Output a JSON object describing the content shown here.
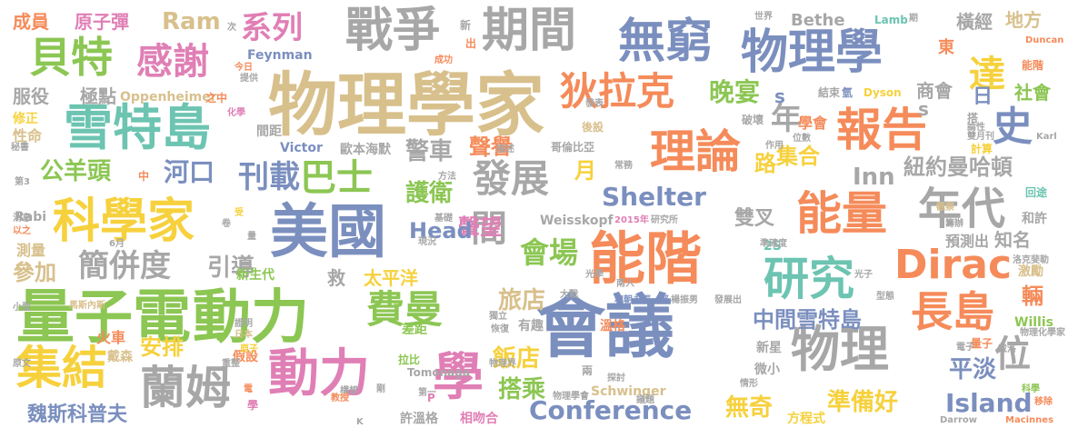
{
  "palette": {
    "blue": "#7b8fbf",
    "green": "#8cc653",
    "orange": "#f58b5a",
    "pink": "#e07fb5",
    "tan": "#d8c08c",
    "gray": "#a7a7a7",
    "yellow": "#f6d13d",
    "teal": "#6cc4b1"
  },
  "words": [
    {
      "text": "會議",
      "color": "blue"
    },
    {
      "text": "物理學家",
      "color": "tan"
    },
    {
      "text": "量子電",
      "color": "green"
    },
    {
      "text": "動力",
      "color": "green"
    },
    {
      "text": "美國",
      "color": "blue"
    },
    {
      "text": "能階",
      "color": "orange"
    },
    {
      "text": "雪特島",
      "color": "teal"
    },
    {
      "text": "戰爭",
      "color": "gray"
    },
    {
      "text": "期間",
      "color": "gray"
    },
    {
      "text": "無窮",
      "color": "blue"
    },
    {
      "text": "物理學",
      "color": "blue"
    },
    {
      "text": "理論",
      "color": "orange"
    },
    {
      "text": "報告",
      "color": "orange"
    },
    {
      "text": "能量",
      "color": "orange"
    },
    {
      "text": "年代",
      "color": "gray"
    },
    {
      "text": "科學家",
      "color": "yellow"
    },
    {
      "text": "物理",
      "color": "gray"
    },
    {
      "text": "動力",
      "color": "pink"
    },
    {
      "text": "學",
      "color": "pink"
    },
    {
      "text": "集結",
      "color": "yellow"
    },
    {
      "text": "蘭姆",
      "color": "gray"
    },
    {
      "text": "研究",
      "color": "teal"
    },
    {
      "text": "長島",
      "color": "orange"
    },
    {
      "text": "Dirac",
      "color": "orange"
    },
    {
      "text": "發展",
      "color": "gray"
    },
    {
      "text": "費曼",
      "color": "green"
    },
    {
      "text": "狄拉克",
      "color": "orange"
    },
    {
      "text": "貝特",
      "color": "green"
    },
    {
      "text": "感謝",
      "color": "pink"
    },
    {
      "text": "巴士",
      "color": "green"
    },
    {
      "text": "史",
      "color": "blue"
    },
    {
      "text": "達",
      "color": "yellow"
    },
    {
      "text": "位",
      "color": "gray"
    },
    {
      "text": "系列",
      "color": "pink"
    },
    {
      "text": "簡併度",
      "color": "gray"
    },
    {
      "text": "會場",
      "color": "green"
    },
    {
      "text": "間",
      "color": "gray"
    },
    {
      "text": "Conference",
      "color": "blue"
    },
    {
      "text": "Island",
      "color": "blue"
    },
    {
      "text": "Shelter",
      "color": "blue"
    },
    {
      "text": "刊載",
      "color": "blue"
    },
    {
      "text": "年",
      "color": "gray"
    },
    {
      "text": "Ram",
      "color": "tan"
    },
    {
      "text": "公羊頭",
      "color": "green"
    },
    {
      "text": "河口",
      "color": "blue"
    },
    {
      "text": "晚宴",
      "color": "green"
    },
    {
      "text": "警車",
      "color": "gray"
    },
    {
      "text": "護衛",
      "color": "green"
    },
    {
      "text": "聲譽",
      "color": "orange"
    },
    {
      "text": "聲望",
      "color": "pink"
    },
    {
      "text": "旅店",
      "color": "tan"
    },
    {
      "text": "飯店",
      "color": "yellow"
    },
    {
      "text": "搭乘",
      "color": "green"
    },
    {
      "text": "無奇",
      "color": "yellow"
    },
    {
      "text": "準備好",
      "color": "yellow"
    },
    {
      "text": "平淡",
      "color": "blue"
    },
    {
      "text": "中間雪特島",
      "color": "blue"
    },
    {
      "text": "紐約曼哈頓",
      "color": "gray"
    },
    {
      "text": "雙叉",
      "color": "gray"
    },
    {
      "text": "集合",
      "color": "yellow"
    },
    {
      "text": "Inn",
      "color": "gray"
    },
    {
      "text": "路",
      "color": "yellow"
    },
    {
      "text": "月",
      "color": "yellow"
    },
    {
      "text": "Head",
      "color": "blue"
    },
    {
      "text": "引導",
      "color": "gray"
    },
    {
      "text": "安排",
      "color": "yellow"
    },
    {
      "text": "參加",
      "color": "tan"
    },
    {
      "text": "魏斯科普夫",
      "color": "blue"
    },
    {
      "text": "成員",
      "color": "orange"
    },
    {
      "text": "原子彈",
      "color": "pink"
    },
    {
      "text": "服役",
      "color": "gray"
    },
    {
      "text": "極點",
      "color": "gray"
    },
    {
      "text": "Oppenheimer",
      "color": "tan"
    },
    {
      "text": "Feynman",
      "color": "blue"
    },
    {
      "text": "Victor",
      "color": "blue"
    },
    {
      "text": "歐本海默",
      "color": "gray"
    },
    {
      "text": "Bethe",
      "color": "gray"
    },
    {
      "text": "Lamb",
      "color": "teal"
    },
    {
      "text": "橫經",
      "color": "gray"
    },
    {
      "text": "地方",
      "color": "tan"
    },
    {
      "text": "東",
      "color": "orange"
    },
    {
      "text": "商會",
      "color": "gray"
    },
    {
      "text": "社會",
      "color": "green"
    },
    {
      "text": "日",
      "color": "blue"
    },
    {
      "text": "能階",
      "color": "orange"
    },
    {
      "text": "Dyson",
      "color": "yellow"
    },
    {
      "text": "學會",
      "color": "orange"
    },
    {
      "text": "太平洋",
      "color": "yellow"
    },
    {
      "text": "救",
      "color": "gray"
    },
    {
      "text": "新生代",
      "color": "green"
    },
    {
      "text": "預測出",
      "color": "gray"
    },
    {
      "text": "知名",
      "color": "gray"
    },
    {
      "text": "和許",
      "color": "gray"
    },
    {
      "text": "回途",
      "color": "teal"
    },
    {
      "text": "激勵",
      "color": "tan"
    },
    {
      "text": "輛",
      "color": "orange"
    },
    {
      "text": "Weisskopf",
      "color": "gray"
    },
    {
      "text": "Schwinger",
      "color": "tan"
    },
    {
      "text": "相吻合",
      "color": "pink"
    },
    {
      "text": "許溫格",
      "color": "gray"
    },
    {
      "text": "方程式",
      "color": "yellow"
    },
    {
      "text": "新星",
      "color": "gray"
    },
    {
      "text": "微小",
      "color": "gray"
    },
    {
      "text": "量子",
      "color": "orange"
    },
    {
      "text": "Willis",
      "color": "green"
    },
    {
      "text": "火車",
      "color": "orange"
    },
    {
      "text": "戴森",
      "color": "tan"
    },
    {
      "text": "假設",
      "color": "orange"
    },
    {
      "text": "拉比",
      "color": "green"
    },
    {
      "text": "測量",
      "color": "tan"
    },
    {
      "text": "性命",
      "color": "tan"
    },
    {
      "text": "修正",
      "color": "yellow"
    },
    {
      "text": "間距",
      "color": "gray"
    },
    {
      "text": "差距",
      "color": "green"
    },
    {
      "text": "有趣",
      "color": "gray"
    },
    {
      "text": "2S",
      "color": "teal"
    },
    {
      "text": "溫格",
      "color": "orange"
    },
    {
      "text": "s",
      "color": "blue"
    },
    {
      "text": "s",
      "color": "gray"
    },
    {
      "text": "P",
      "color": "pink"
    },
    {
      "text": "Rabi",
      "color": "gray"
    },
    {
      "text": "Tomonaga",
      "color": "gray"
    },
    {
      "text": "Duncan",
      "color": "orange"
    },
    {
      "text": "Karl",
      "color": "gray"
    },
    {
      "text": "Darrow",
      "color": "gray"
    },
    {
      "text": "Macinnes",
      "color": "orange"
    },
    {
      "text": "雙月刊",
      "color": "gray"
    },
    {
      "text": "計算",
      "color": "yellow"
    },
    {
      "text": "位數",
      "color": "gray"
    },
    {
      "text": "結束",
      "color": "gray"
    },
    {
      "text": "氫",
      "color": "blue"
    },
    {
      "text": "破壞",
      "color": "gray"
    },
    {
      "text": "作用",
      "color": "gray"
    },
    {
      "text": "搭",
      "color": "gray"
    },
    {
      "text": "論性",
      "color": "gray"
    },
    {
      "text": "哥倫比亞",
      "color": "gray"
    },
    {
      "text": "獨立",
      "color": "gray"
    },
    {
      "text": "恢復",
      "color": "gray"
    },
    {
      "text": "物理界",
      "color": "gray"
    },
    {
      "text": "兩",
      "color": "gray"
    },
    {
      "text": "和朝永振一郎",
      "color": "blue"
    },
    {
      "text": "楊振男",
      "color": "gray"
    },
    {
      "text": "發展出",
      "color": "gray"
    },
    {
      "text": "大戰",
      "color": "gray"
    },
    {
      "text": "光學",
      "color": "gray"
    },
    {
      "text": "南入",
      "color": "gray"
    },
    {
      "text": "馬斯內斯",
      "color": "tan"
    },
    {
      "text": "證明",
      "color": "gray"
    },
    {
      "text": "日本",
      "color": "tan"
    },
    {
      "text": "原子",
      "color": "yellow"
    },
    {
      "text": "電",
      "color": "orange"
    },
    {
      "text": "重整",
      "color": "gray"
    },
    {
      "text": "原文",
      "color": "gray"
    },
    {
      "text": "小型",
      "color": "gray"
    },
    {
      "text": "消息",
      "color": "gray"
    },
    {
      "text": "以之",
      "color": "orange"
    },
    {
      "text": "6月",
      "color": "gray"
    },
    {
      "text": "受",
      "color": "yellow"
    },
    {
      "text": "2015年",
      "color": "pink"
    },
    {
      "text": "研究所",
      "color": "gray"
    },
    {
      "text": "基礎",
      "color": "gray"
    },
    {
      "text": "常務",
      "color": "gray"
    },
    {
      "text": "方法",
      "color": "gray"
    },
    {
      "text": "描述",
      "color": "gray"
    },
    {
      "text": "成功",
      "color": "orange"
    },
    {
      "text": "後設",
      "color": "tan"
    },
    {
      "text": "發表",
      "color": "gray"
    },
    {
      "text": "提供",
      "color": "gray"
    },
    {
      "text": "今日",
      "color": "orange"
    },
    {
      "text": "化學",
      "color": "pink"
    },
    {
      "text": "之中",
      "color": "orange"
    },
    {
      "text": "世界",
      "color": "gray"
    },
    {
      "text": "期",
      "color": "gray"
    },
    {
      "text": "次",
      "color": "gray"
    },
    {
      "text": "新",
      "color": "gray"
    },
    {
      "text": "出",
      "color": "orange"
    },
    {
      "text": "中",
      "color": "orange"
    },
    {
      "text": "第3",
      "color": "gray"
    },
    {
      "text": "秘書",
      "color": "gray"
    },
    {
      "text": "準確度",
      "color": "gray"
    },
    {
      "text": "觀察",
      "color": "tan"
    },
    {
      "text": "光子",
      "color": "gray"
    },
    {
      "text": "籌辦",
      "color": "gray"
    },
    {
      "text": "洛克斐勒",
      "color": "gray"
    },
    {
      "text": "型態",
      "color": "gray"
    },
    {
      "text": "電子",
      "color": "gray"
    },
    {
      "text": "戴洛",
      "color": "gray"
    },
    {
      "text": "物理化學家",
      "color": "gray"
    },
    {
      "text": "科學",
      "color": "green"
    },
    {
      "text": "移除",
      "color": "orange"
    },
    {
      "text": "情形",
      "color": "gray"
    },
    {
      "text": "探討",
      "color": "gray"
    },
    {
      "text": "第一",
      "color": "gray"
    },
    {
      "text": "剛",
      "color": "gray"
    },
    {
      "text": "構想",
      "color": "gray"
    },
    {
      "text": "教授",
      "color": "orange"
    },
    {
      "text": "學",
      "color": "pink"
    },
    {
      "text": "物理學會",
      "color": "gray"
    },
    {
      "text": "議題",
      "color": "gray"
    },
    {
      "text": "K",
      "color": "gray"
    },
    {
      "text": "現況",
      "color": "gray"
    },
    {
      "text": "卷",
      "color": "gray"
    },
    {
      "text": "量",
      "color": "gray"
    }
  ]
}
